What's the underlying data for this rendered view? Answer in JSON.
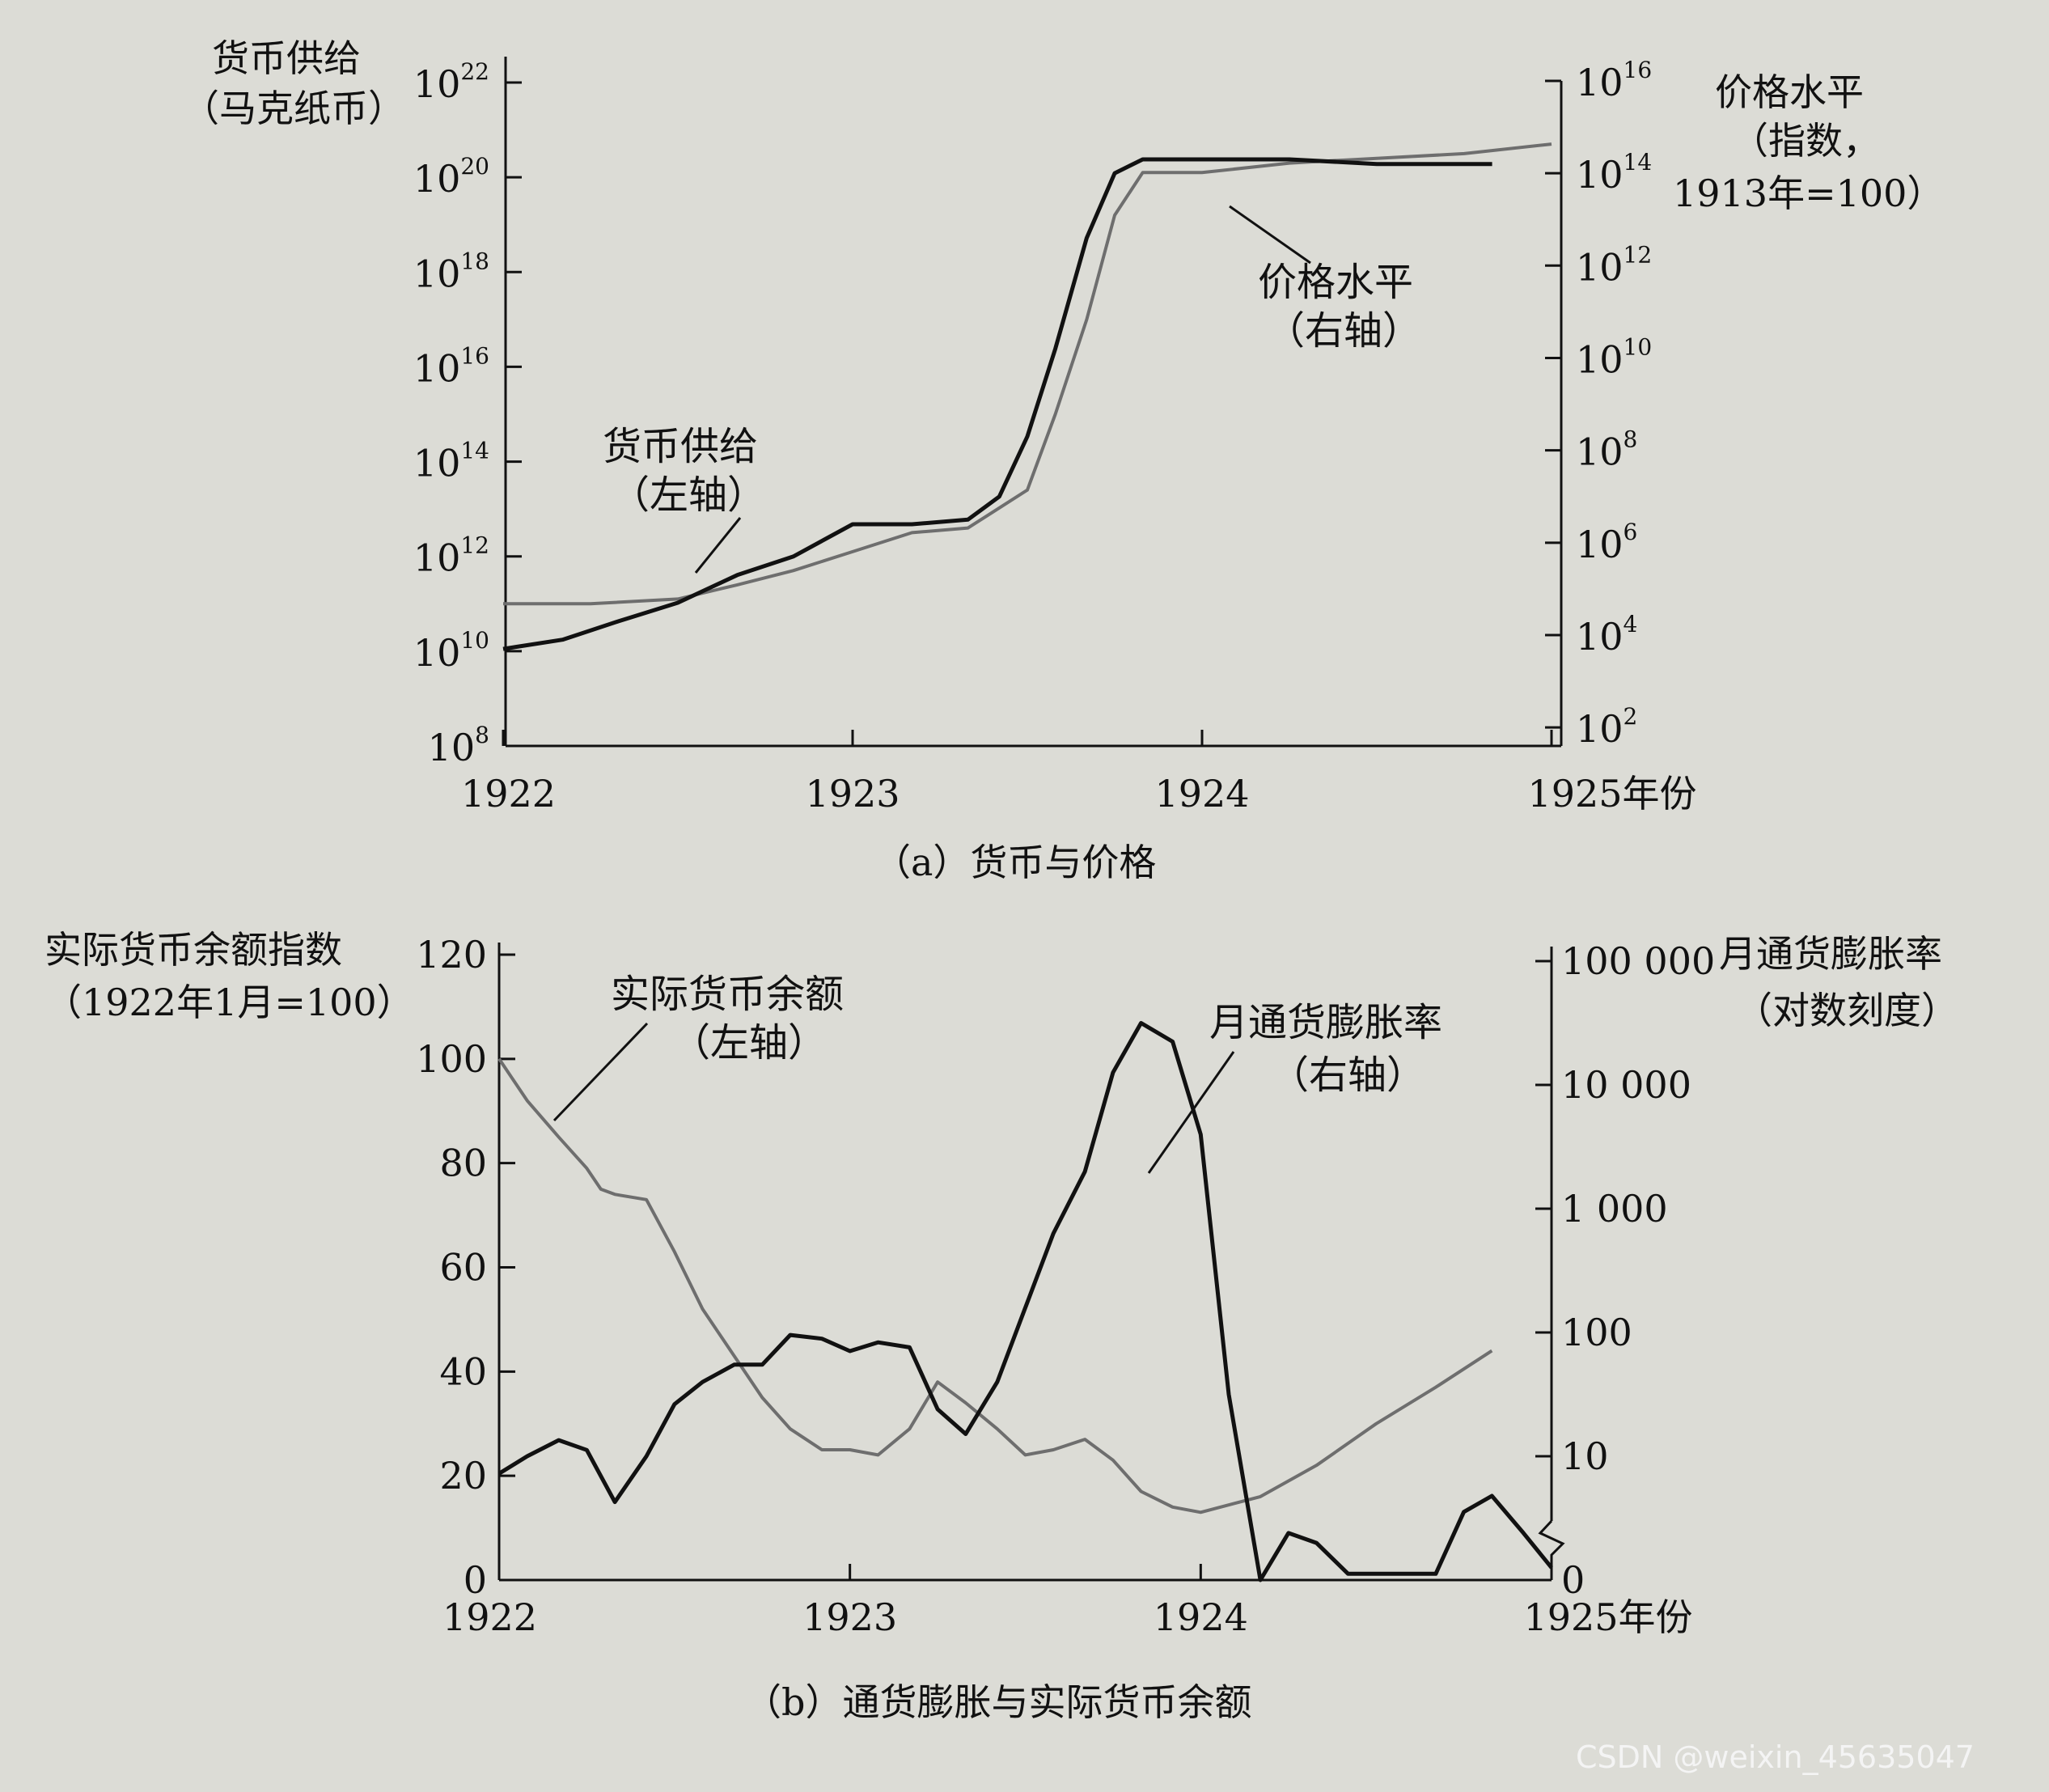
{
  "watermark": "CSDN @weixin_45635047",
  "chart_data": [
    {
      "id": "a",
      "type": "line",
      "caption": "（a）货币与价格",
      "left_axis": {
        "title_line1": "货币供给",
        "title_line2": "（马克纸币）",
        "scale": "log",
        "ticks_exp": [
          8,
          10,
          12,
          14,
          16,
          18,
          20,
          22
        ],
        "ylim_exp": [
          8,
          22
        ]
      },
      "right_axis": {
        "title_line1": "价格水平",
        "title_line2": "（指数，",
        "title_line3": "1913年=100）",
        "scale": "log",
        "ticks_exp": [
          2,
          4,
          6,
          8,
          10,
          12,
          14,
          16
        ],
        "ylim_exp": [
          1.6,
          16.7
        ]
      },
      "x_axis": {
        "ticks": [
          "1922",
          "1923",
          "1924",
          "1925年份"
        ],
        "xlim": [
          1922,
          1925
        ]
      },
      "annotations": {
        "money_label_1": "货币供给",
        "money_label_2": "（左轴）",
        "price_label_1": "价格水平",
        "price_label_2": "（右轴）"
      },
      "series": [
        {
          "name": "货币供给",
          "axis": "left",
          "color": "#6e6e6e",
          "points": [
            [
              1922.0,
              11.0
            ],
            [
              1922.25,
              11.0
            ],
            [
              1922.5,
              11.1
            ],
            [
              1922.67,
              11.4
            ],
            [
              1922.83,
              11.7
            ],
            [
              1923.0,
              12.1
            ],
            [
              1923.17,
              12.5
            ],
            [
              1923.33,
              12.6
            ],
            [
              1923.5,
              13.4
            ],
            [
              1923.58,
              15.0
            ],
            [
              1923.67,
              17.0
            ],
            [
              1923.75,
              19.2
            ],
            [
              1923.83,
              20.1
            ],
            [
              1923.92,
              20.1
            ],
            [
              1924.0,
              20.1
            ],
            [
              1924.25,
              20.3
            ],
            [
              1924.5,
              20.4
            ],
            [
              1924.75,
              20.5
            ],
            [
              1925.0,
              20.7
            ]
          ]
        },
        {
          "name": "价格水平",
          "axis": "right",
          "color": "#111111",
          "points": [
            [
              1922.0,
              3.7
            ],
            [
              1922.17,
              3.9
            ],
            [
              1922.33,
              4.3
            ],
            [
              1922.5,
              4.7
            ],
            [
              1922.67,
              5.3
            ],
            [
              1922.83,
              5.7
            ],
            [
              1923.0,
              6.4
            ],
            [
              1923.17,
              6.4
            ],
            [
              1923.33,
              6.5
            ],
            [
              1923.42,
              7.0
            ],
            [
              1923.5,
              8.3
            ],
            [
              1923.58,
              10.2
            ],
            [
              1923.67,
              12.6
            ],
            [
              1923.75,
              14.0
            ],
            [
              1923.83,
              14.3
            ],
            [
              1924.0,
              14.3
            ],
            [
              1924.25,
              14.3
            ],
            [
              1924.5,
              14.2
            ],
            [
              1924.75,
              14.2
            ],
            [
              1924.83,
              14.2
            ]
          ]
        }
      ]
    },
    {
      "id": "b",
      "type": "line",
      "caption": "（b）通货膨胀与实际货币余额",
      "left_axis": {
        "title_line1": "实际货币余额指数",
        "title_line2": "（1922年1月=100）",
        "scale": "linear",
        "ticks": [
          "0",
          "20",
          "40",
          "60",
          "80",
          "100",
          "120"
        ],
        "ylim": [
          0,
          120
        ]
      },
      "right_axis": {
        "title_line1": "月通货膨胀率",
        "title_line2": "（对数刻度）",
        "scale": "log",
        "ticks": [
          "0",
          "10",
          "100",
          "1 000",
          "10 000",
          "100 000"
        ],
        "ylim_log10": [
          0,
          5
        ]
      },
      "x_axis": {
        "ticks": [
          "1922",
          "1923",
          "1924",
          "1925年份"
        ],
        "xlim": [
          1922,
          1925
        ]
      },
      "annotations": {
        "real_label_1": "实际货币余额",
        "real_label_2": "（左轴）",
        "infl_label_1": "月通货膨胀率",
        "infl_label_2": "（右轴）"
      },
      "series": [
        {
          "name": "实际货币余额",
          "axis": "left",
          "color": "#6e6e6e",
          "points": [
            [
              1922.0,
              100
            ],
            [
              1922.08,
              92
            ],
            [
              1922.17,
              85
            ],
            [
              1922.25,
              79
            ],
            [
              1922.29,
              75
            ],
            [
              1922.33,
              74
            ],
            [
              1922.42,
              73
            ],
            [
              1922.5,
              63
            ],
            [
              1922.58,
              52
            ],
            [
              1922.67,
              43
            ],
            [
              1922.75,
              35
            ],
            [
              1922.83,
              29
            ],
            [
              1922.92,
              25
            ],
            [
              1923.0,
              25
            ],
            [
              1923.08,
              24
            ],
            [
              1923.17,
              29
            ],
            [
              1923.25,
              38
            ],
            [
              1923.33,
              34
            ],
            [
              1923.42,
              29
            ],
            [
              1923.5,
              24
            ],
            [
              1923.58,
              25
            ],
            [
              1923.67,
              27
            ],
            [
              1923.75,
              23
            ],
            [
              1923.83,
              17
            ],
            [
              1923.92,
              14
            ],
            [
              1924.0,
              13
            ],
            [
              1924.17,
              16
            ],
            [
              1924.33,
              22
            ],
            [
              1924.5,
              30
            ],
            [
              1924.67,
              37
            ],
            [
              1924.83,
              44
            ]
          ]
        },
        {
          "name": "月通货膨胀率",
          "axis": "right",
          "color": "#111111",
          "points": [
            [
              1922.0,
              0.86
            ],
            [
              1922.08,
              1.0
            ],
            [
              1922.17,
              1.13
            ],
            [
              1922.25,
              1.05
            ],
            [
              1922.33,
              0.63
            ],
            [
              1922.42,
              1.0
            ],
            [
              1922.5,
              1.42
            ],
            [
              1922.58,
              1.6
            ],
            [
              1922.67,
              1.74
            ],
            [
              1922.75,
              1.74
            ],
            [
              1922.83,
              1.98
            ],
            [
              1922.92,
              1.95
            ],
            [
              1923.0,
              1.85
            ],
            [
              1923.08,
              1.92
            ],
            [
              1923.17,
              1.88
            ],
            [
              1923.25,
              1.38
            ],
            [
              1923.33,
              1.18
            ],
            [
              1923.42,
              1.6
            ],
            [
              1923.5,
              2.2
            ],
            [
              1923.58,
              2.8
            ],
            [
              1923.67,
              3.3
            ],
            [
              1923.75,
              4.1
            ],
            [
              1923.83,
              4.5
            ],
            [
              1923.92,
              4.35
            ],
            [
              1924.0,
              3.6
            ],
            [
              1924.08,
              1.5
            ],
            [
              1924.17,
              0.0
            ],
            [
              1924.25,
              0.38
            ],
            [
              1924.33,
              0.3
            ],
            [
              1924.42,
              0.05
            ],
            [
              1924.58,
              0.05
            ],
            [
              1924.67,
              0.05
            ],
            [
              1924.75,
              0.55
            ],
            [
              1924.83,
              0.68
            ],
            [
              1924.92,
              0.38
            ],
            [
              1925.0,
              0.1
            ]
          ]
        }
      ]
    }
  ]
}
